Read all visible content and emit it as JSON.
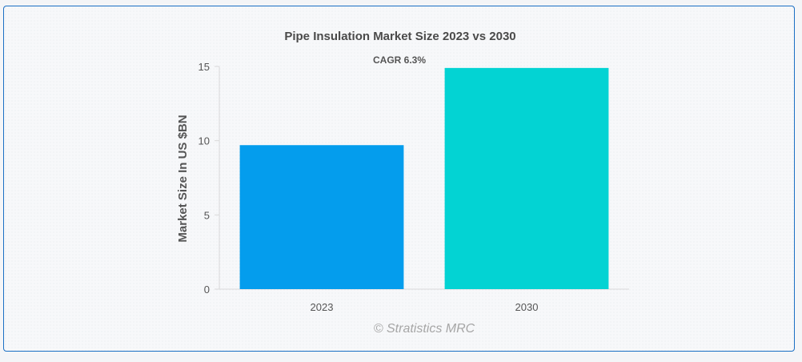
{
  "chart_data": {
    "type": "bar",
    "title": "Pipe Insulation Market Size 2023 vs 2030",
    "annotation": "CAGR 6.3%",
    "categories": [
      "2023",
      "2030"
    ],
    "values": [
      9.7,
      14.9
    ],
    "colors": [
      "#049ded",
      "#03d3d3"
    ],
    "ylabel": "Market Size In US $BN",
    "xlabel": "",
    "ylim": [
      0,
      15
    ],
    "yticks": [
      0,
      5,
      10,
      15
    ],
    "ytick_labels": [
      "0",
      "5",
      "10",
      "15"
    ],
    "grid": false,
    "watermark": "© Stratistics MRC"
  }
}
